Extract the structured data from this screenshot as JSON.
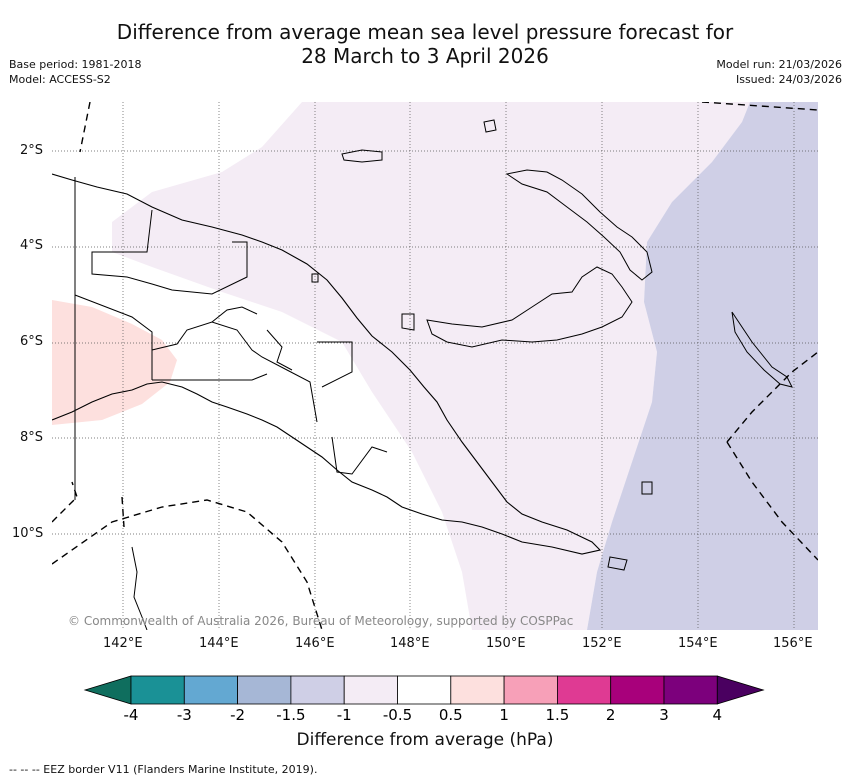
{
  "title": {
    "line1": "Difference from average mean sea level pressure forecast for",
    "line2": "28 March to 3 April 2026"
  },
  "meta_left": {
    "base_period": "Base period: 1981-2018",
    "model": "Model: ACCESS-S2"
  },
  "meta_right": {
    "model_run": "Model run: 21/03/2026",
    "issued": "Issued: 24/03/2026"
  },
  "map": {
    "lat_labels": [
      "2°S",
      "4°S",
      "6°S",
      "8°S",
      "10°S"
    ],
    "lon_labels": [
      "142°E",
      "144°E",
      "146°E",
      "148°E",
      "150°E",
      "152°E",
      "154°E",
      "156°E"
    ],
    "credit": "© Commonwealth of Australia 2026, Bureau of Meteorology, supported by COSPPac"
  },
  "colorbar": {
    "colors": [
      "#0f6e5e",
      "#1a9196",
      "#63a8d2",
      "#a6b7d6",
      "#cfcfe6",
      "#f4ecf5",
      "#ffffff",
      "#fde0de",
      "#f7a0b8",
      "#df3a93",
      "#a8007b",
      "#7c007c",
      "#4a0060"
    ],
    "labels": [
      "-4",
      "-3",
      "-2",
      "-1.5",
      "-1",
      "-0.5",
      "0.5",
      "1",
      "1.5",
      "2",
      "3",
      "4"
    ],
    "title": "Difference from average (hPa)"
  },
  "legend_note": "-- -- -- EEZ border V11 (Flanders Marine Institute, 2019).",
  "colors": {
    "positive_small": "#fde0de",
    "near_zero_negative": "#f4ecf5",
    "negative_one": "#cfcfe6"
  }
}
